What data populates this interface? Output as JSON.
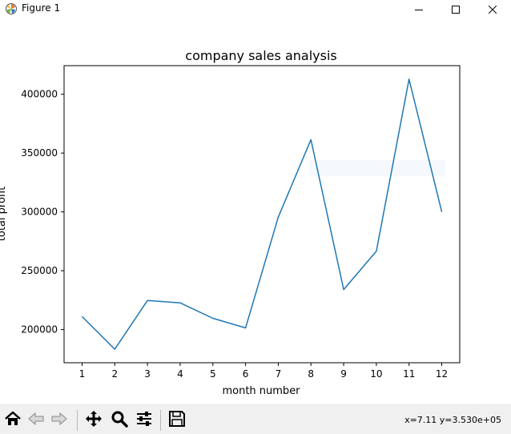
{
  "window": {
    "title": "Figure 1",
    "icon": "matplotlib-logo-icon",
    "controls": [
      "minimize-icon",
      "maximize-icon",
      "close-icon"
    ]
  },
  "chart_data": {
    "type": "line",
    "title": "company sales analysis",
    "xlabel": "month number",
    "ylabel": "total profit",
    "x": [
      1,
      2,
      3,
      4,
      5,
      6,
      7,
      8,
      9,
      10,
      11,
      12
    ],
    "y": [
      211000,
      183300,
      224700,
      222700,
      209600,
      201400,
      295500,
      361400,
      234000,
      266700,
      412800,
      300200
    ],
    "xticks": [
      "1",
      "2",
      "3",
      "4",
      "5",
      "6",
      "7",
      "8",
      "9",
      "10",
      "11",
      "12"
    ],
    "yticks": [
      "200000",
      "250000",
      "300000",
      "350000",
      "400000"
    ],
    "xlim": [
      0.45,
      12.55
    ],
    "ylim": [
      171800,
      424300
    ],
    "line_color": "#1f77b4",
    "grid": false
  },
  "toolbar": {
    "tools": [
      "home-icon",
      "back-icon",
      "forward-icon",
      "pan-icon",
      "zoom-icon",
      "configure-subplots-icon",
      "save-icon"
    ],
    "coords": "x=7.11 y=3.530e+05"
  }
}
